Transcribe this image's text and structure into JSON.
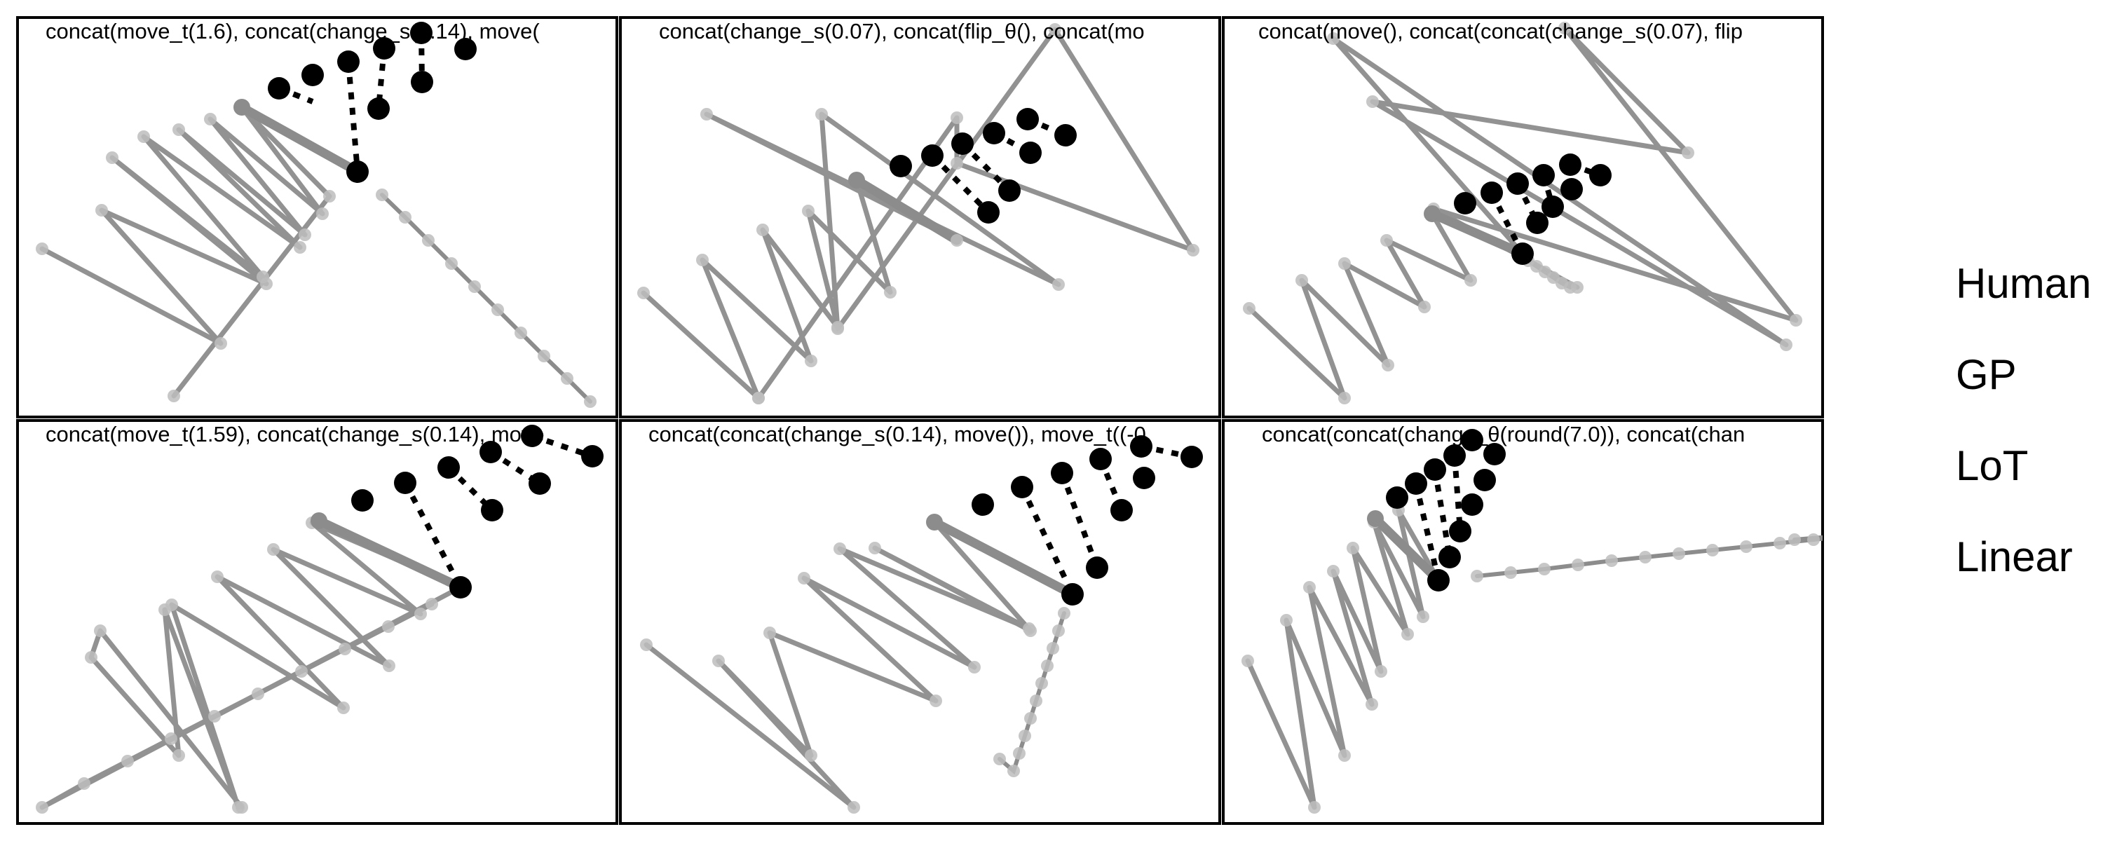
{
  "figure": {
    "legend": [
      "Human",
      "GP",
      "LoT",
      "Linear"
    ]
  },
  "panels": [
    {
      "title": "concat(move_t(1.6), concat(change_s(0.14), move(",
      "black_dots": [
        [
          398,
          126
        ],
        [
          446,
          107
        ],
        [
          497,
          88
        ],
        [
          548,
          69
        ],
        [
          601,
          47
        ],
        [
          664,
          70
        ],
        [
          602,
          117
        ],
        [
          540,
          155
        ],
        [
          510,
          245
        ]
      ],
      "dashed_lines": [
        [
          [
            398,
            126
          ],
          [
            446,
            145
          ]
        ],
        [
          [
            497,
            88
          ],
          [
            510,
            245
          ]
        ],
        [
          [
            548,
            69
          ],
          [
            540,
            155
          ]
        ],
        [
          [
            601,
            47
          ],
          [
            602,
            117
          ]
        ]
      ],
      "gray_points": [
        [
          60,
          355
        ],
        [
          315,
          490
        ],
        [
          145,
          300
        ],
        [
          380,
          405
        ],
        [
          160,
          225
        ],
        [
          375,
          395
        ],
        [
          205,
          195
        ],
        [
          428,
          353
        ],
        [
          255,
          185
        ],
        [
          435,
          335
        ],
        [
          300,
          170
        ],
        [
          460,
          305
        ],
        [
          345,
          153
        ],
        [
          470,
          280
        ],
        [
          248,
          565
        ]
      ],
      "thick_segment": [
        [
          345,
          153
        ],
        [
          510,
          245
        ]
      ],
      "tail_points": [
        [
          545,
          278
        ],
        [
          578,
          310
        ],
        [
          611,
          343
        ],
        [
          644,
          376
        ],
        [
          677,
          409
        ],
        [
          710,
          442
        ],
        [
          743,
          475
        ],
        [
          776,
          508
        ],
        [
          809,
          540
        ],
        [
          842,
          573
        ]
      ]
    },
    {
      "title": "concat(change_s(0.07), concat(flip_θ(), concat(mo",
      "black_dots": [
        [
          1285,
          237
        ],
        [
          1330,
          222
        ],
        [
          1373,
          205
        ],
        [
          1418,
          190
        ],
        [
          1466,
          170
        ],
        [
          1520,
          193
        ],
        [
          1470,
          218
        ],
        [
          1440,
          272
        ],
        [
          1410,
          303
        ]
      ],
      "dashed_lines": [
        [
          [
            1330,
            222
          ],
          [
            1410,
            303
          ]
        ],
        [
          [
            1373,
            205
          ],
          [
            1440,
            272
          ]
        ],
        [
          [
            1418,
            190
          ],
          [
            1470,
            218
          ]
        ],
        [
          [
            1466,
            170
          ],
          [
            1520,
            193
          ]
        ]
      ],
      "gray_points": [
        [
          918,
          418
        ],
        [
          1082,
          568
        ],
        [
          1002,
          371
        ],
        [
          1157,
          515
        ],
        [
          1088,
          328
        ],
        [
          1195,
          467
        ],
        [
          1153,
          301
        ],
        [
          1270,
          417
        ],
        [
          1222,
          257
        ],
        [
          1365,
          343
        ],
        [
          1008,
          163
        ],
        [
          1510,
          406
        ],
        [
          1172,
          163
        ],
        [
          1195,
          469
        ],
        [
          1505,
          42
        ],
        [
          1702,
          357
        ],
        [
          1365,
          233
        ],
        [
          1365,
          168
        ],
        [
          1082,
          568
        ]
      ],
      "thick_segment": [
        [
          1222,
          257
        ],
        [
          1365,
          343
        ]
      ],
      "tail_points": []
    },
    {
      "title": "concat(move(), concat(concat(change_s(0.07), flip",
      "black_dots": [
        [
          2090,
          290
        ],
        [
          2128,
          275
        ],
        [
          2165,
          262
        ],
        [
          2202,
          250
        ],
        [
          2240,
          235
        ],
        [
          2283,
          250
        ],
        [
          2242,
          270
        ],
        [
          2215,
          295
        ],
        [
          2193,
          318
        ],
        [
          2172,
          362
        ]
      ],
      "dashed_lines": [
        [
          [
            2128,
            275
          ],
          [
            2172,
            362
          ]
        ],
        [
          [
            2165,
            262
          ],
          [
            2193,
            318
          ]
        ],
        [
          [
            2202,
            250
          ],
          [
            2215,
            295
          ]
        ],
        [
          [
            2240,
            235
          ],
          [
            2283,
            250
          ]
        ]
      ],
      "gray_points": [
        [
          1782,
          440
        ],
        [
          1918,
          568
        ],
        [
          1857,
          400
        ],
        [
          1980,
          521
        ],
        [
          1918,
          376
        ],
        [
          2032,
          438
        ],
        [
          1978,
          343
        ],
        [
          2098,
          400
        ],
        [
          2043,
          305
        ],
        [
          2172,
          362
        ],
        [
          1902,
          55
        ],
        [
          2548,
          492
        ],
        [
          1958,
          145
        ],
        [
          2408,
          218
        ],
        [
          2232,
          40
        ],
        [
          2562,
          457
        ],
        [
          2045,
          298
        ],
        [
          2250,
          410
        ]
      ],
      "thick_segment": [
        [
          2043,
          305
        ],
        [
          2172,
          362
        ]
      ],
      "tail_points": [
        [
          2180,
          372
        ],
        [
          2192,
          380
        ],
        [
          2204,
          388
        ],
        [
          2216,
          396
        ],
        [
          2228,
          404
        ],
        [
          2240,
          410
        ]
      ]
    },
    {
      "title": "concat(move_t(1.59), concat(change_s(0.14), move",
      "black_dots": [
        [
          517,
          714
        ],
        [
          578,
          689
        ],
        [
          640,
          667
        ],
        [
          700,
          645
        ],
        [
          759,
          622
        ],
        [
          845,
          651
        ],
        [
          770,
          690
        ],
        [
          702,
          728
        ],
        [
          657,
          838
        ]
      ],
      "dashed_lines": [
        [
          [
            578,
            689
          ],
          [
            657,
            838
          ]
        ],
        [
          [
            640,
            667
          ],
          [
            702,
            728
          ]
        ],
        [
          [
            700,
            645
          ],
          [
            770,
            690
          ]
        ],
        [
          [
            759,
            622
          ],
          [
            845,
            651
          ]
        ]
      ],
      "gray_points": [
        [
          345,
          1152
        ],
        [
          143,
          900
        ],
        [
          130,
          938
        ],
        [
          255,
          1078
        ],
        [
          235,
          870
        ],
        [
          340,
          1152
        ],
        [
          245,
          863
        ],
        [
          490,
          1010
        ],
        [
          310,
          823
        ],
        [
          555,
          950
        ],
        [
          390,
          784
        ],
        [
          600,
          876
        ],
        [
          445,
          746
        ],
        [
          657,
          838
        ],
        [
          60,
          1152
        ],
        [
          120,
          1118
        ],
        [
          182,
          1086
        ],
        [
          244,
          1054
        ],
        [
          306,
          1022
        ],
        [
          368,
          990
        ],
        [
          430,
          958
        ],
        [
          492,
          926
        ],
        [
          554,
          894
        ],
        [
          616,
          862
        ]
      ],
      "thick_segment": [
        [
          455,
          743
        ],
        [
          657,
          838
        ]
      ],
      "tail_points": []
    },
    {
      "title": "concat(concat(change_s(0.14), move()), move_t((-0",
      "black_dots": [
        [
          1402,
          720
        ],
        [
          1458,
          695
        ],
        [
          1515,
          675
        ],
        [
          1570,
          655
        ],
        [
          1628,
          637
        ],
        [
          1700,
          652
        ],
        [
          1632,
          682
        ],
        [
          1600,
          728
        ],
        [
          1565,
          810
        ],
        [
          1530,
          848
        ]
      ],
      "dashed_lines": [
        [
          [
            1458,
            695
          ],
          [
            1530,
            848
          ]
        ],
        [
          [
            1515,
            675
          ],
          [
            1565,
            810
          ]
        ],
        [
          [
            1570,
            655
          ],
          [
            1600,
            728
          ]
        ],
        [
          [
            1628,
            637
          ],
          [
            1700,
            652
          ]
        ]
      ],
      "gray_points": [
        [
          922,
          920
        ],
        [
          1218,
          1152
        ],
        [
          1025,
          943
        ],
        [
          1157,
          1078
        ],
        [
          1098,
          903
        ],
        [
          1335,
          1000
        ],
        [
          1147,
          825
        ],
        [
          1390,
          952
        ],
        [
          1198,
          783
        ],
        [
          1468,
          897
        ],
        [
          1248,
          782
        ],
        [
          1470,
          900
        ],
        [
          1333,
          745
        ],
        [
          1530,
          848
        ]
      ],
      "thick_segment": [
        [
          1333,
          745
        ],
        [
          1530,
          848
        ]
      ],
      "tail_points": [
        [
          1518,
          875
        ],
        [
          1510,
          900
        ],
        [
          1502,
          925
        ],
        [
          1494,
          950
        ],
        [
          1486,
          975
        ],
        [
          1478,
          1000
        ],
        [
          1470,
          1025
        ],
        [
          1462,
          1050
        ],
        [
          1454,
          1075
        ],
        [
          1446,
          1100
        ],
        [
          1426,
          1083
        ]
      ]
    },
    {
      "title": "concat(concat(change_θ(round(7.0)), concat(chan",
      "black_dots": [
        [
          1993,
          710
        ],
        [
          2020,
          690
        ],
        [
          2047,
          670
        ],
        [
          2075,
          650
        ],
        [
          2100,
          628
        ],
        [
          2132,
          648
        ],
        [
          2118,
          685
        ],
        [
          2100,
          720
        ],
        [
          2083,
          758
        ],
        [
          2068,
          795
        ],
        [
          2052,
          828
        ]
      ],
      "dashed_lines": [
        [
          [
            2020,
            690
          ],
          [
            2052,
            828
          ]
        ],
        [
          [
            2047,
            670
          ],
          [
            2068,
            795
          ]
        ],
        [
          [
            2075,
            650
          ],
          [
            2083,
            758
          ]
        ],
        [
          [
            2100,
            628
          ],
          [
            2132,
            648
          ]
        ]
      ],
      "gray_points": [
        [
          1780,
          943
        ],
        [
          1875,
          1152
        ],
        [
          1835,
          885
        ],
        [
          1918,
          1078
        ],
        [
          1868,
          838
        ],
        [
          1957,
          1005
        ],
        [
          1902,
          815
        ],
        [
          1970,
          958
        ],
        [
          1930,
          782
        ],
        [
          2008,
          905
        ],
        [
          1960,
          745
        ],
        [
          2030,
          880
        ],
        [
          1995,
          728
        ],
        [
          2052,
          828
        ]
      ],
      "thick_segment": [
        [
          1962,
          740
        ],
        [
          2052,
          828
        ]
      ],
      "tail_points": [
        [
          2107,
          822
        ],
        [
          2155,
          817
        ],
        [
          2203,
          812
        ],
        [
          2251,
          806
        ],
        [
          2299,
          800
        ],
        [
          2347,
          795
        ],
        [
          2395,
          790
        ],
        [
          2443,
          785
        ],
        [
          2491,
          780
        ],
        [
          2539,
          775
        ],
        [
          2587,
          770
        ],
        [
          2635,
          765
        ],
        [
          2683,
          760
        ],
        [
          2560,
          770
        ]
      ]
    }
  ]
}
